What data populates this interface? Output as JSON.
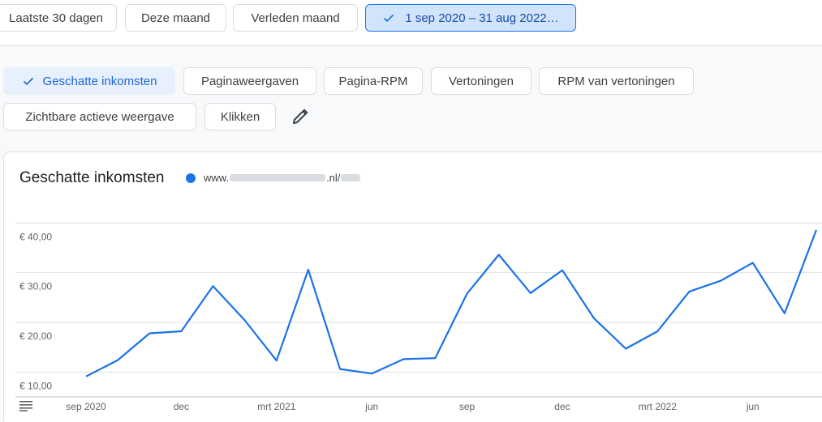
{
  "range_buttons": [
    {
      "label": "Laatste 30 dagen"
    },
    {
      "label": "Deze maand"
    },
    {
      "label": "Verleden maand"
    },
    {
      "label": "1 sep 2020 – 31 aug 2022…",
      "active": true
    }
  ],
  "metrics": [
    {
      "label": "Geschatte inkomsten",
      "selected": true
    },
    {
      "label": "Paginaweergaven"
    },
    {
      "label": "Pagina-RPM"
    },
    {
      "label": "Vertoningen"
    },
    {
      "label": "RPM van vertoningen"
    },
    {
      "label": "Zichtbare actieve weergave"
    },
    {
      "label": "Klikken"
    }
  ],
  "card": {
    "title": "Geschatte inkomsten",
    "legend": {
      "prefix": "www.",
      "middle": ".nl/"
    }
  },
  "colors": {
    "series": "#1a73e8",
    "accent": "#1a73e8"
  },
  "icons": {
    "check": "check-icon",
    "edit": "pencil-icon",
    "menu": "menu-icon"
  },
  "chart_data": {
    "type": "line",
    "ylim": [
      5,
      42
    ],
    "y_ticks": [
      10,
      20,
      30,
      40
    ],
    "y_tick_labels": [
      "€ 10,00",
      "€ 20,00",
      "€ 30,00",
      "€ 40,00"
    ],
    "x": [
      "2020-09",
      "2020-10",
      "2020-11",
      "2020-12",
      "2021-01",
      "2021-02",
      "2021-03",
      "2021-04",
      "2021-05",
      "2021-06",
      "2021-07",
      "2021-08",
      "2021-09",
      "2021-10",
      "2021-11",
      "2021-12",
      "2022-01",
      "2022-02",
      "2022-03",
      "2022-04",
      "2022-05",
      "2022-06",
      "2022-07",
      "2022-08"
    ],
    "x_tick_labels": [
      {
        "x": "2020-09",
        "label": "sep 2020"
      },
      {
        "x": "2020-12",
        "label": "dec"
      },
      {
        "x": "2021-03",
        "label": "mrt 2021"
      },
      {
        "x": "2021-06",
        "label": "jun"
      },
      {
        "x": "2021-09",
        "label": "sep"
      },
      {
        "x": "2021-12",
        "label": "dec"
      },
      {
        "x": "2022-03",
        "label": "mrt 2022"
      },
      {
        "x": "2022-06",
        "label": "jun"
      }
    ],
    "series": [
      {
        "values": [
          9.1,
          12.4,
          17.8,
          18.2,
          27.3,
          20.4,
          12.3,
          30.6,
          10.6,
          9.7,
          12.6,
          12.8,
          25.8,
          33.6,
          25.9,
          30.5,
          20.8,
          14.7,
          18.2,
          26.2,
          28.4,
          32.0,
          21.8,
          38.6
        ]
      }
    ],
    "grid": true
  }
}
